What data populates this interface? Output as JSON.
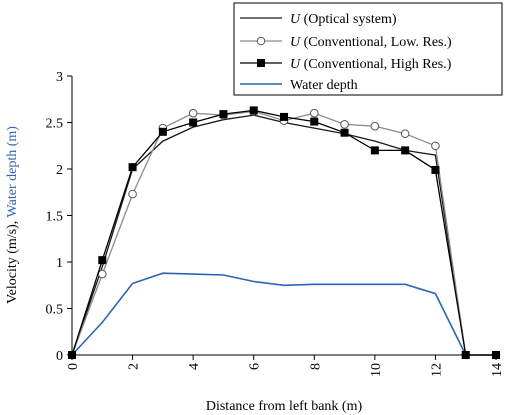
{
  "chart_data": {
    "type": "line",
    "xlabel": "Distance from left bank (m)",
    "ylabel_parts": [
      "Velocity  (m/s),  ",
      "Water depth (m)"
    ],
    "xlim": [
      0,
      14
    ],
    "ylim": [
      0,
      3
    ],
    "x_ticks": [
      "0",
      "2",
      "4",
      "6",
      "8",
      "10",
      "12",
      "14"
    ],
    "y_ticks": [
      "0",
      "0.5",
      "1",
      "1.5",
      "2",
      "2.5",
      "3"
    ],
    "x_tick_values": [
      0,
      2,
      4,
      6,
      8,
      10,
      12,
      14
    ],
    "y_tick_values": [
      0,
      0.5,
      1,
      1.5,
      2,
      2.5,
      3
    ],
    "grid": false,
    "legend_position": "top-right",
    "series": [
      {
        "name": "U (Optical system)",
        "legend_symbol": "U",
        "legend_text": " (Optical system)",
        "color": "#1a1a1a",
        "marker": "none",
        "x": [
          0,
          1,
          2,
          3,
          4,
          5,
          6,
          7,
          8,
          9,
          10,
          11,
          12,
          13,
          14
        ],
        "y": [
          0,
          0.95,
          2.0,
          2.3,
          2.45,
          2.53,
          2.58,
          2.5,
          2.44,
          2.38,
          2.3,
          2.2,
          2.15,
          0,
          0
        ]
      },
      {
        "name": "U (Conventional, Low. Res.)",
        "legend_symbol": "U",
        "legend_text": " (Conventional, Low. Res.)",
        "color": "#8c8c8c",
        "marker": "circle",
        "x": [
          0,
          1,
          2,
          3,
          4,
          5,
          6,
          7,
          8,
          9,
          10,
          11,
          12,
          13,
          14
        ],
        "y": [
          0,
          0.87,
          1.73,
          2.44,
          2.6,
          2.58,
          2.62,
          2.52,
          2.6,
          2.48,
          2.46,
          2.38,
          2.25,
          0,
          0
        ]
      },
      {
        "name": "U (Conventional, High Res.)",
        "legend_symbol": "U",
        "legend_text": " (Conventional, High Res.)",
        "color": "#000000",
        "marker": "square",
        "x": [
          0,
          1,
          2,
          3,
          4,
          5,
          6,
          7,
          8,
          9,
          10,
          11,
          12,
          13,
          14
        ],
        "y": [
          0,
          1.02,
          2.02,
          2.4,
          2.5,
          2.59,
          2.63,
          2.56,
          2.51,
          2.39,
          2.2,
          2.2,
          1.99,
          0,
          0
        ]
      },
      {
        "name": "Water depth",
        "legend_symbol": "",
        "legend_text": "Water depth",
        "color": "#2e64b4",
        "marker": "none",
        "x": [
          0,
          1,
          2,
          3,
          4,
          5,
          6,
          7,
          8,
          9,
          10,
          11,
          12,
          13,
          14
        ],
        "y": [
          0,
          0.35,
          0.77,
          0.88,
          0.87,
          0.86,
          0.79,
          0.75,
          0.76,
          0.76,
          0.76,
          0.76,
          0.66,
          0,
          0
        ]
      }
    ]
  }
}
